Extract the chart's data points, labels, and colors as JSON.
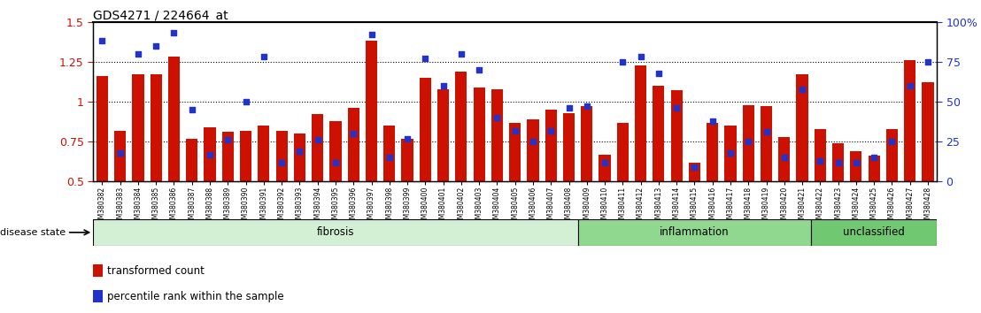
{
  "title": "GDS4271 / 224664_at",
  "samples": [
    "GSM380382",
    "GSM380383",
    "GSM380384",
    "GSM380385",
    "GSM380386",
    "GSM380387",
    "GSM380388",
    "GSM380389",
    "GSM380390",
    "GSM380391",
    "GSM380392",
    "GSM380393",
    "GSM380394",
    "GSM380395",
    "GSM380396",
    "GSM380397",
    "GSM380398",
    "GSM380399",
    "GSM380400",
    "GSM380401",
    "GSM380402",
    "GSM380403",
    "GSM380404",
    "GSM380405",
    "GSM380406",
    "GSM380407",
    "GSM380408",
    "GSM380409",
    "GSM380410",
    "GSM380411",
    "GSM380412",
    "GSM380413",
    "GSM380414",
    "GSM380415",
    "GSM380416",
    "GSM380417",
    "GSM380418",
    "GSM380419",
    "GSM380420",
    "GSM380421",
    "GSM380422",
    "GSM380423",
    "GSM380424",
    "GSM380425",
    "GSM380426",
    "GSM380427",
    "GSM380428"
  ],
  "bar_values": [
    1.16,
    0.82,
    1.17,
    1.17,
    1.28,
    0.77,
    0.84,
    0.81,
    0.82,
    0.85,
    0.82,
    0.8,
    0.92,
    0.88,
    0.96,
    1.38,
    0.85,
    0.77,
    1.15,
    1.08,
    1.19,
    1.09,
    1.08,
    0.87,
    0.89,
    0.95,
    0.93,
    0.97,
    0.67,
    0.87,
    1.23,
    1.1,
    1.07,
    0.62,
    0.87,
    0.85,
    0.98,
    0.97,
    0.78,
    1.17,
    0.83,
    0.74,
    0.69,
    0.66,
    0.83,
    1.26,
    1.12
  ],
  "dot_values": [
    1.38,
    0.68,
    1.3,
    1.35,
    1.43,
    0.95,
    0.67,
    0.76,
    1.0,
    1.28,
    0.62,
    0.69,
    0.76,
    0.62,
    0.8,
    1.42,
    0.65,
    0.77,
    1.27,
    1.1,
    1.3,
    1.2,
    0.9,
    0.82,
    0.75,
    0.82,
    0.96,
    0.97,
    0.62,
    1.25,
    1.28,
    1.18,
    0.96,
    0.59,
    0.88,
    0.68,
    0.75,
    0.81,
    0.65,
    1.08,
    0.63,
    0.62,
    0.62,
    0.65,
    0.75,
    1.1,
    1.25
  ],
  "groups": [
    {
      "label": "fibrosis",
      "start": 0,
      "end": 27,
      "color": "#d4f0d4"
    },
    {
      "label": "inflammation",
      "start": 27,
      "end": 40,
      "color": "#90d890"
    },
    {
      "label": "unclassified",
      "start": 40,
      "end": 47,
      "color": "#70c870"
    }
  ],
  "ylim": [
    0.5,
    1.5
  ],
  "yticks_left": [
    0.5,
    0.75,
    1.0,
    1.25,
    1.5
  ],
  "ytick_labels_left": [
    "0.5",
    "0.75",
    "1",
    "1.25",
    "1.5"
  ],
  "right_ytick_positions": [
    0.5,
    0.75,
    1.0,
    1.25,
    1.5
  ],
  "right_ytick_labels": [
    "0",
    "25",
    "50",
    "75",
    "100%"
  ],
  "hlines": [
    0.75,
    1.0,
    1.25
  ],
  "bar_color": "#cc1100",
  "dot_color": "#2233cc",
  "plot_bg": "#ffffff",
  "left_tick_color": "#cc1100",
  "right_tick_color": "#2233cc"
}
